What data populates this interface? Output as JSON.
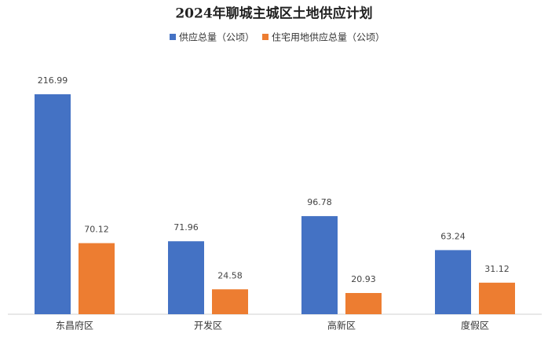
{
  "chart_data": {
    "type": "bar",
    "title": "2024年聊城主城区土地供应计划",
    "categories": [
      "东昌府区",
      "开发区",
      "高新区",
      "度假区"
    ],
    "series": [
      {
        "name": "供应总量（公顷）",
        "color": "#4472c4",
        "values": [
          216.99,
          71.96,
          96.78,
          63.24
        ]
      },
      {
        "name": "住宅用地供应总量（公顷）",
        "color": "#ed7d31",
        "values": [
          70.12,
          24.58,
          20.93,
          31.12
        ]
      }
    ]
  }
}
